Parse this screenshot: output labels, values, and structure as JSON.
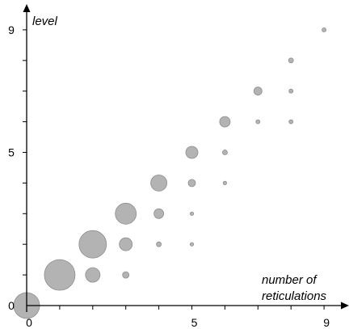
{
  "chart_data": {
    "type": "scatter",
    "title": "",
    "xlabel_lines": [
      "number of",
      "reticulations"
    ],
    "ylabel": "level",
    "xlim": [
      0,
      9
    ],
    "ylim": [
      0,
      9
    ],
    "x_tick_labels": [
      {
        "value": 0,
        "label": "0"
      },
      {
        "value": 5,
        "label": "5"
      },
      {
        "value": 9,
        "label": "9"
      }
    ],
    "y_tick_labels": [
      {
        "value": 0,
        "label": "0"
      },
      {
        "value": 5,
        "label": "5"
      },
      {
        "value": 9,
        "label": "9"
      }
    ],
    "x_ticks": [
      0,
      1,
      2,
      3,
      4,
      5,
      6,
      7,
      8,
      9
    ],
    "y_ticks": [
      0,
      1,
      2,
      3,
      4,
      5,
      6,
      7,
      8,
      9
    ],
    "grid": false,
    "bubble_color": "#b3b3b3",
    "points": [
      {
        "x": 0,
        "y": 0,
        "size": 16
      },
      {
        "x": 1,
        "y": 1,
        "size": 19
      },
      {
        "x": 2,
        "y": 1,
        "size": 9
      },
      {
        "x": 3,
        "y": 1,
        "size": 4
      },
      {
        "x": 2,
        "y": 2,
        "size": 17
      },
      {
        "x": 3,
        "y": 2,
        "size": 8
      },
      {
        "x": 4,
        "y": 2,
        "size": 3
      },
      {
        "x": 5,
        "y": 2,
        "size": 2.2
      },
      {
        "x": 3,
        "y": 3,
        "size": 13
      },
      {
        "x": 4,
        "y": 3,
        "size": 6
      },
      {
        "x": 5,
        "y": 3,
        "size": 2.2
      },
      {
        "x": 4,
        "y": 4,
        "size": 10
      },
      {
        "x": 5,
        "y": 4,
        "size": 4.5
      },
      {
        "x": 6,
        "y": 4,
        "size": 2.2
      },
      {
        "x": 5,
        "y": 5,
        "size": 7.5
      },
      {
        "x": 6,
        "y": 5,
        "size": 3
      },
      {
        "x": 6,
        "y": 6,
        "size": 6.5
      },
      {
        "x": 7,
        "y": 6,
        "size": 2.5
      },
      {
        "x": 8,
        "y": 6,
        "size": 2.5
      },
      {
        "x": 7,
        "y": 7,
        "size": 5
      },
      {
        "x": 8,
        "y": 7,
        "size": 2.5
      },
      {
        "x": 8,
        "y": 8,
        "size": 3
      },
      {
        "x": 9,
        "y": 9,
        "size": 2.5
      }
    ]
  }
}
